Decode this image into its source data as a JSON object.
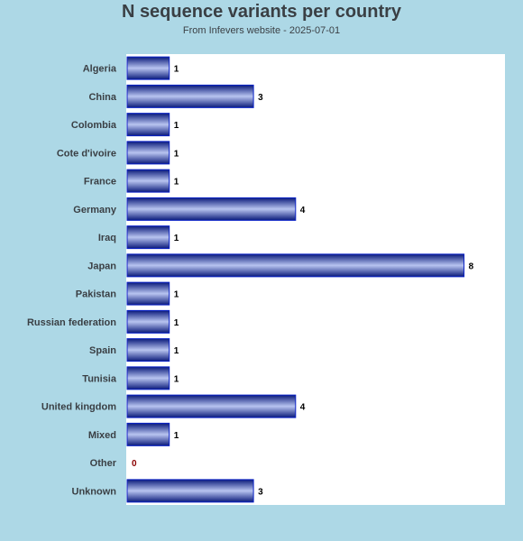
{
  "title": "N sequence variants per country",
  "subtitle": "From Infevers website - 2025-07-01",
  "colors": {
    "background": "#add8e6",
    "plot_area": "#ffffff",
    "bar_dark": "#0a1a7a",
    "bar_light": "#b8c4f0",
    "zero_label": "#8b0000"
  },
  "chart_data": {
    "type": "bar",
    "orientation": "horizontal",
    "title": "N sequence variants per country",
    "subtitle": "From Infevers website - 2025-07-01",
    "categories": [
      "Algeria",
      "China",
      "Colombia",
      "Cote d'ivoire",
      "France",
      "Germany",
      "Iraq",
      "Japan",
      "Pakistan",
      "Russian federation",
      "Spain",
      "Tunisia",
      "United kingdom",
      "Mixed",
      "Other",
      "Unknown"
    ],
    "values": [
      1,
      3,
      1,
      1,
      1,
      4,
      1,
      8,
      1,
      1,
      1,
      1,
      4,
      1,
      0,
      3
    ],
    "value_labels": [
      "1",
      "3",
      "1",
      "1",
      "1",
      "4",
      "1",
      "8",
      "1",
      "1",
      "1",
      "1",
      "4",
      "1",
      "0",
      "3"
    ],
    "xlim": [
      0,
      9
    ],
    "grid": false,
    "legend": "none"
  }
}
